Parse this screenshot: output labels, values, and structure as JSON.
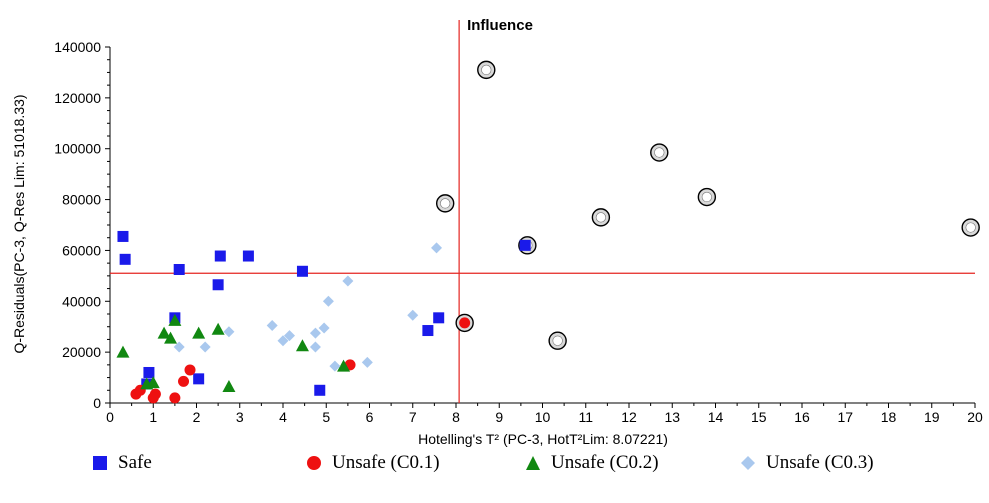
{
  "chart_data": {
    "type": "scatter",
    "title": "Influence",
    "xlabel": "Hotelling's T² (PC-3, HotT²Lim: 8.07221)",
    "ylabel": "Q-Residuals(PC-3, Q-Res Lim: 51018.33)",
    "xlim": [
      0,
      20
    ],
    "ylim": [
      0,
      140000
    ],
    "xticks": [
      0,
      1,
      2,
      3,
      4,
      5,
      6,
      7,
      8,
      9,
      10,
      11,
      12,
      13,
      14,
      15,
      16,
      17,
      18,
      19,
      20
    ],
    "yticks": [
      0,
      20000,
      40000,
      60000,
      80000,
      100000,
      120000,
      140000
    ],
    "reference_lines": {
      "x": 8.07221,
      "y": 51018.33,
      "color": "#e52521"
    },
    "grid": false,
    "legend_position": "bottom",
    "series": [
      {
        "name": "Safe",
        "marker": "square",
        "color": "#1a1aea",
        "points": [
          [
            0.3,
            65500
          ],
          [
            0.35,
            56500
          ],
          [
            1.6,
            52500
          ],
          [
            2.55,
            57800
          ],
          [
            3.2,
            57800
          ],
          [
            4.45,
            51800
          ],
          [
            2.5,
            46500
          ],
          [
            1.5,
            33500
          ],
          [
            0.9,
            12000
          ],
          [
            2.05,
            9500
          ],
          [
            0.85,
            7500
          ],
          [
            4.85,
            5000
          ],
          [
            7.35,
            28500
          ],
          [
            7.6,
            33500
          ],
          [
            9.6,
            62000
          ]
        ]
      },
      {
        "name": "Unsafe (C0.1)",
        "marker": "circle",
        "color": "#ee1111",
        "points": [
          [
            0.6,
            3500
          ],
          [
            0.7,
            5000
          ],
          [
            1.05,
            3500
          ],
          [
            1.0,
            2000
          ],
          [
            1.5,
            2000
          ],
          [
            1.7,
            8500
          ],
          [
            1.85,
            13000
          ],
          [
            5.55,
            15000
          ],
          [
            8.2,
            31500
          ]
        ]
      },
      {
        "name": "Unsafe (C0.2)",
        "marker": "triangle",
        "color": "#118811",
        "points": [
          [
            0.3,
            20000
          ],
          [
            0.85,
            7500
          ],
          [
            1.0,
            8000
          ],
          [
            1.25,
            27500
          ],
          [
            1.4,
            25500
          ],
          [
            1.5,
            32500
          ],
          [
            2.05,
            27500
          ],
          [
            2.5,
            29000
          ],
          [
            2.75,
            6500
          ],
          [
            4.45,
            22500
          ],
          [
            5.4,
            14500
          ]
        ]
      },
      {
        "name": "Unsafe (C0.3)",
        "marker": "diamond",
        "color": "#a9c8ee",
        "points": [
          [
            1.6,
            22000
          ],
          [
            2.2,
            22000
          ],
          [
            2.75,
            28000
          ],
          [
            3.75,
            30500
          ],
          [
            4.0,
            24500
          ],
          [
            4.15,
            26500
          ],
          [
            4.75,
            27500
          ],
          [
            4.75,
            22000
          ],
          [
            4.95,
            29500
          ],
          [
            5.05,
            40000
          ],
          [
            5.2,
            14500
          ],
          [
            5.5,
            48000
          ],
          [
            5.95,
            16000
          ],
          [
            7.0,
            34500
          ],
          [
            7.55,
            61000
          ]
        ]
      }
    ],
    "highlighted_points": [
      [
        7.75,
        78500
      ],
      [
        8.2,
        31500
      ],
      [
        8.7,
        131000
      ],
      [
        9.65,
        62000
      ],
      [
        10.35,
        24500
      ],
      [
        11.35,
        73000
      ],
      [
        12.7,
        98500
      ],
      [
        13.8,
        81000
      ],
      [
        19.9,
        69000
      ]
    ]
  }
}
